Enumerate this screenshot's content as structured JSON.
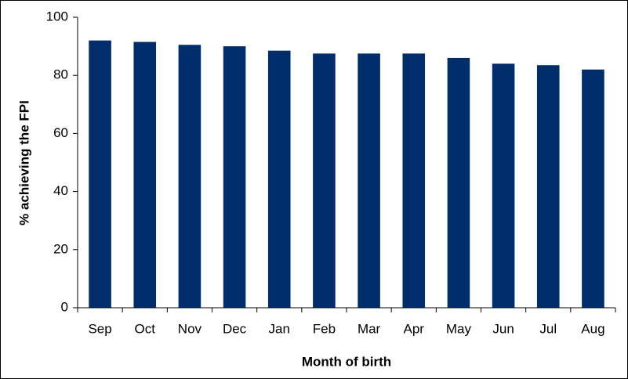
{
  "chart_data": {
    "type": "bar",
    "x_label": "Month of birth",
    "y_label": "% achieving the FPI",
    "categories": [
      "Sep",
      "Oct",
      "Nov",
      "Dec",
      "Jan",
      "Feb",
      "Mar",
      "Apr",
      "May",
      "Jun",
      "Jul",
      "Aug"
    ],
    "values": [
      92,
      91.5,
      90.5,
      90,
      88.5,
      87.5,
      87.5,
      87.5,
      86,
      84,
      83.5,
      82
    ],
    "color": "#002d6b",
    "ylim": [
      0,
      100
    ],
    "yticks": [
      0,
      20,
      40,
      60,
      80,
      100
    ],
    "grid": false
  }
}
